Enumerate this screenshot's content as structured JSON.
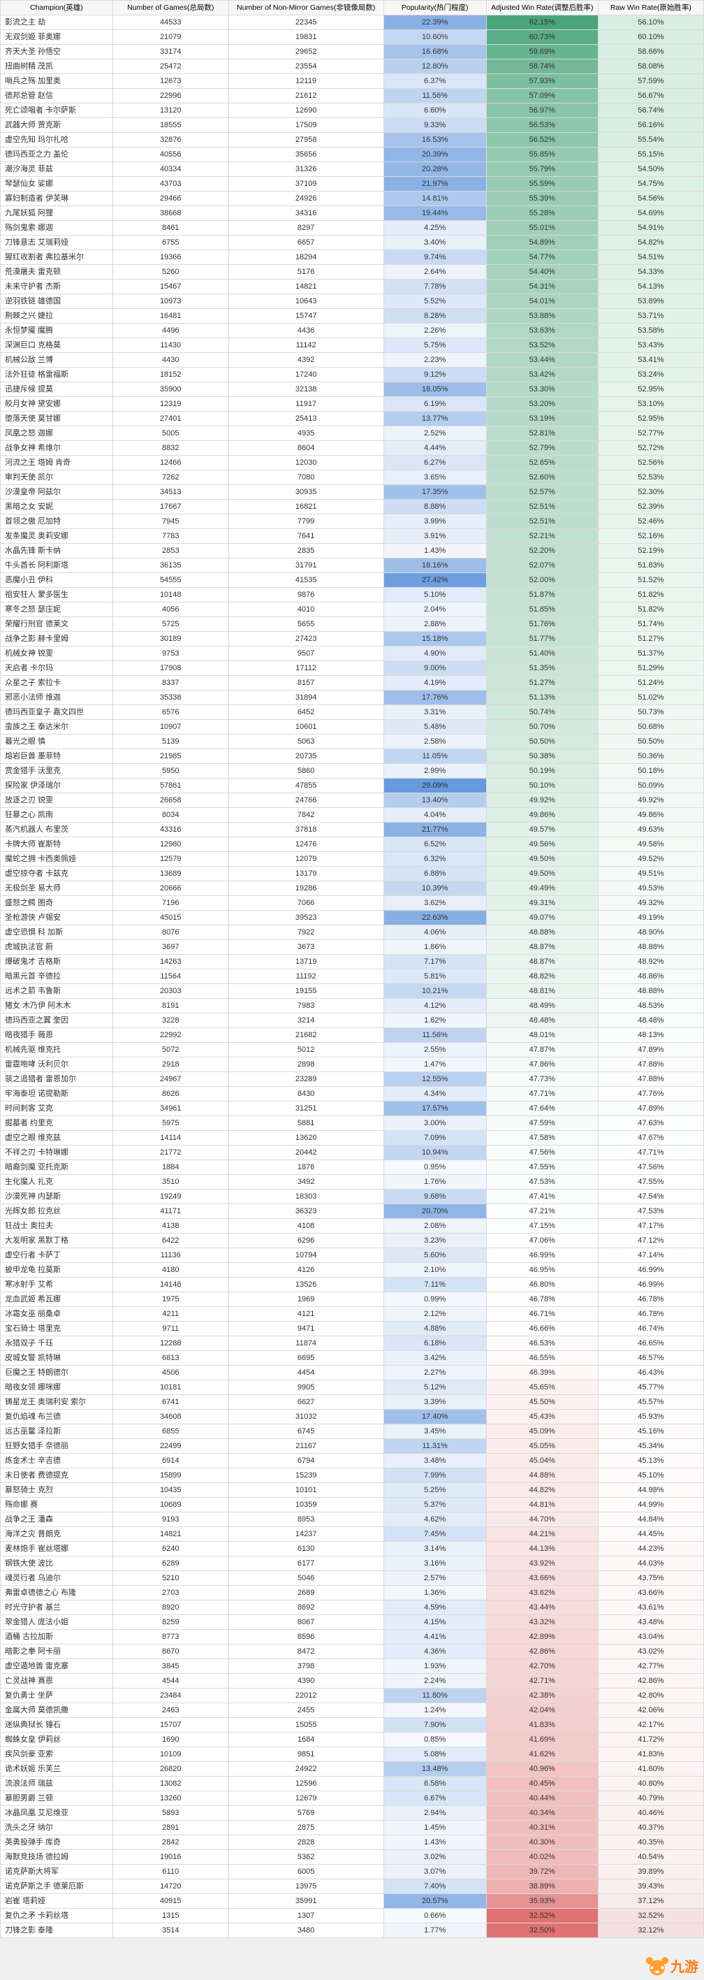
{
  "headers": [
    "Champion(英雄)",
    "Number of Games(总局数)",
    "Number of Non-Mirror Games(非镜像局数)",
    "Popularity(热门程度)",
    "Adjusted Win Rate(调整后胜率)",
    "Raw Win Rate(原始胜率)"
  ],
  "pop_scale": {
    "max_hex": "#6699dd",
    "min_hex": "#f6f9fd",
    "max_val": 29.09,
    "min_val": 0.66
  },
  "adj_scale": {
    "top_hex": "#4aa57a",
    "mid_hex": "#ffffff",
    "bot_hex": "#e07272",
    "top_val": 62.15,
    "mid_val": 47.0,
    "bot_val": 32.5
  },
  "raw_scale": {
    "top_hex": "#d7ede1",
    "mid_hex": "#ffffff",
    "bot_hex": "#f5e0e0",
    "top_val": 56.1,
    "mid_val": 47.0,
    "bot_val": 32.12
  },
  "logo_text": "九游",
  "rows": [
    [
      "影流之主 劫",
      44533,
      22345,
      22.39,
      62.15,
      56.1
    ],
    [
      "无双剑姬 菲奥娜",
      21079,
      19831,
      10.6,
      60.73,
      60.1
    ],
    [
      "齐天大圣 孙悟空",
      33174,
      29652,
      16.68,
      59.69,
      58.66
    ],
    [
      "扭曲树精 茂凯",
      25472,
      23554,
      12.8,
      58.74,
      58.08
    ],
    [
      "哨兵之殇 加里奥",
      12673,
      12119,
      6.37,
      57.93,
      57.59
    ],
    [
      "德邦总管 赵信",
      22996,
      21612,
      11.56,
      57.09,
      56.67
    ],
    [
      "死亡颂唱者 卡尔萨斯",
      13120,
      12690,
      6.6,
      56.97,
      56.74
    ],
    [
      "武器大师 贾克斯",
      18555,
      17509,
      9.33,
      56.53,
      56.16
    ],
    [
      "虚空先知 玛尔扎哈",
      32876,
      27958,
      16.53,
      56.52,
      55.54
    ],
    [
      "德玛西亚之力 盖伦",
      40556,
      35656,
      20.39,
      55.85,
      55.15
    ],
    [
      "潮汐海灵 菲兹",
      40334,
      31326,
      20.28,
      55.79,
      54.5
    ],
    [
      "琴瑟仙女 娑娜",
      43703,
      37109,
      21.97,
      55.59,
      54.75
    ],
    [
      "寡妇制造者 伊芙琳",
      29466,
      24926,
      14.81,
      55.39,
      54.56
    ],
    [
      "九尾妖狐 阿狸",
      38668,
      34316,
      19.44,
      55.28,
      54.69
    ],
    [
      "殇剑鬼索 娜迦",
      8461,
      8297,
      4.25,
      55.01,
      54.91
    ],
    [
      "刀锋意志 艾瑞莉娅",
      6755,
      6657,
      3.4,
      54.89,
      54.82
    ],
    [
      "猩红收割者 弗拉基米尔",
      19366,
      18294,
      9.74,
      54.77,
      54.51
    ],
    [
      "荒漠屠夫 雷克顿",
      5260,
      5176,
      2.64,
      54.4,
      54.33
    ],
    [
      "未来守护者 杰斯",
      15467,
      14821,
      7.78,
      54.31,
      54.13
    ],
    [
      "逆羽铁链 雄德国",
      10973,
      10643,
      5.52,
      54.01,
      53.89
    ],
    [
      "荆棘之兴 婕拉",
      16481,
      15747,
      8.28,
      53.88,
      53.71
    ],
    [
      "永恒梦魇 魔腾",
      4496,
      4436,
      2.26,
      53.63,
      53.58
    ],
    [
      "深渊巨口 克格莫",
      11430,
      11142,
      5.75,
      53.52,
      53.43
    ],
    [
      "机械公敌 兰博",
      4430,
      4392,
      2.23,
      53.44,
      53.41
    ],
    [
      "法外狂徒 格雷福斯",
      18152,
      17240,
      9.12,
      53.42,
      53.24
    ],
    [
      "迅捷斥候 提莫",
      35900,
      32138,
      18.05,
      53.3,
      52.95
    ],
    [
      "皎月女神 黛安娜",
      12319,
      11917,
      6.19,
      53.2,
      53.1
    ],
    [
      "堕落天使 莫甘娜",
      27401,
      25413,
      13.77,
      53.19,
      52.95
    ],
    [
      "凤凰之怒 迦娜",
      5005,
      4935,
      2.52,
      52.81,
      52.77
    ],
    [
      "战争女神 希维尔",
      8832,
      8604,
      4.44,
      52.79,
      52.72
    ],
    [
      "河流之王 塔姆 肯奇",
      12466,
      12030,
      6.27,
      52.65,
      52.56
    ],
    [
      "审判天使 凯尔",
      7262,
      7080,
      3.65,
      52.6,
      52.53
    ],
    [
      "沙漠皇帝 阿兹尔",
      34513,
      30935,
      17.35,
      52.57,
      52.3
    ],
    [
      "黑暗之女 安妮",
      17667,
      16821,
      8.88,
      52.51,
      52.39
    ],
    [
      "首领之傲 厄加特",
      7945,
      7799,
      3.99,
      52.51,
      52.46
    ],
    [
      "发条魔灵 奥莉安娜",
      7783,
      7641,
      3.91,
      52.21,
      52.16
    ],
    [
      "水晶先锋 斯卡纳",
      2853,
      2835,
      1.43,
      52.2,
      52.19
    ],
    [
      "牛头酋长 阿利斯塔",
      36135,
      31791,
      18.16,
      52.07,
      51.83
    ],
    [
      "恶魔小丑 伊科",
      54555,
      41535,
      27.42,
      52.0,
      51.52
    ],
    [
      "祖安狂人 蒙多医生",
      10148,
      9876,
      5.1,
      51.87,
      51.82
    ],
    [
      "寒冬之怒 瑟庄妮",
      4056,
      4010,
      2.04,
      51.85,
      51.82
    ],
    [
      "荣耀行刑官 德莱文",
      5725,
      5655,
      2.88,
      51.76,
      51.74
    ],
    [
      "战争之影 赫卡里姆",
      30189,
      27423,
      15.18,
      51.77,
      51.27
    ],
    [
      "机械女神 锐雯",
      9753,
      9507,
      4.9,
      51.4,
      51.37
    ],
    [
      "天启者 卡尔玛",
      17908,
      17112,
      9.0,
      51.35,
      51.29
    ],
    [
      "众星之子 索拉卡",
      8337,
      8157,
      4.19,
      51.27,
      51.24
    ],
    [
      "邪恶小法师 维迦",
      35338,
      31894,
      17.76,
      51.13,
      51.02
    ],
    [
      "德玛西亚皇子 嘉文四世",
      6576,
      6452,
      3.31,
      50.74,
      50.73
    ],
    [
      "蛮族之王 泰达米尔",
      10907,
      10601,
      5.48,
      50.7,
      50.68
    ],
    [
      "暮光之眼 慎",
      5139,
      5063,
      2.58,
      50.5,
      50.5
    ],
    [
      "熔岩巨兽 墨菲特",
      21985,
      20735,
      11.05,
      50.38,
      50.36
    ],
    [
      "赏金猎手 沃里克",
      5950,
      5860,
      2.99,
      50.19,
      50.18
    ],
    [
      "探险家 伊泽瑞尔",
      57861,
      47855,
      29.09,
      50.1,
      50.09
    ],
    [
      "放逐之刃 锐雯",
      26658,
      24766,
      13.4,
      49.92,
      49.92
    ],
    [
      "狂暴之心 凯南",
      8034,
      7842,
      4.04,
      49.86,
      49.86
    ],
    [
      "蒸汽机器人 布里茨",
      43316,
      37818,
      21.77,
      49.57,
      49.63
    ],
    [
      "卡牌大师 崔斯特",
      12980,
      12476,
      6.52,
      49.56,
      49.58
    ],
    [
      "魔蛇之拥 卡西奥佩娅",
      12579,
      12079,
      6.32,
      49.5,
      49.52
    ],
    [
      "虚空掠夺者 卡兹克",
      13689,
      13179,
      6.88,
      49.5,
      49.51
    ],
    [
      "无极剑圣 易大师",
      20666,
      19286,
      10.39,
      49.49,
      49.53
    ],
    [
      "盛怒之鳄 图奇",
      7196,
      7066,
      3.62,
      49.31,
      49.32
    ],
    [
      "圣枪游侠 卢锡安",
      45015,
      39523,
      22.63,
      49.07,
      49.19
    ],
    [
      "虚空恐惧 科 加斯",
      8076,
      7922,
      4.06,
      48.88,
      48.9
    ],
    [
      "虎城执法官 蔚",
      3697,
      3673,
      1.86,
      48.87,
      48.88
    ],
    [
      "爆破鬼才 吉格斯",
      14263,
      13719,
      7.17,
      48.87,
      48.92
    ],
    [
      "暗黑元首 辛德拉",
      11564,
      11192,
      5.81,
      48.82,
      48.86
    ],
    [
      "远术之箭 韦鲁斯",
      20303,
      19155,
      10.21,
      48.81,
      48.88
    ],
    [
      "猪女 木乃伊 阿木木",
      8191,
      7983,
      4.12,
      48.49,
      48.53
    ],
    [
      "德玛西亚之翼 奎因",
      3228,
      3214,
      1.62,
      48.48,
      48.48
    ],
    [
      "暗夜猎手 薇恩",
      22992,
      21682,
      11.56,
      48.01,
      48.13
    ],
    [
      "机械先驱 维克托",
      5072,
      5012,
      2.55,
      47.87,
      47.89
    ],
    [
      "雷霆咆哮 沃利贝尔",
      2918,
      2898,
      1.47,
      47.86,
      47.88
    ],
    [
      "骇之追猎者 雷恩加尔",
      24967,
      23289,
      12.55,
      47.73,
      47.88
    ],
    [
      "牢海泰坦 诺提勒斯",
      8626,
      8430,
      4.34,
      47.71,
      47.76
    ],
    [
      "时间刺客 艾克",
      34961,
      31251,
      17.57,
      47.64,
      47.89
    ],
    [
      "掘墓者 约里克",
      5975,
      5881,
      3.0,
      47.59,
      47.63
    ],
    [
      "虚空之眼 维克兹",
      14114,
      13620,
      7.09,
      47.58,
      47.67
    ],
    [
      "不祥之刃 卡特琳娜",
      21772,
      20442,
      10.94,
      47.56,
      47.71
    ],
    [
      "暗裔剑魔 亚托克斯",
      1884,
      1876,
      0.95,
      47.55,
      47.56
    ],
    [
      "生化魔人 扎克",
      3510,
      3492,
      1.76,
      47.53,
      47.55
    ],
    [
      "沙漠死神 内瑟斯",
      19249,
      18303,
      9.68,
      47.41,
      47.54
    ],
    [
      "光辉女郎 拉克丝",
      41171,
      36323,
      20.7,
      47.21,
      47.53
    ],
    [
      "狂战士 奥拉夫",
      4138,
      4108,
      2.08,
      47.15,
      47.17
    ],
    [
      "大发明家 黑默丁格",
      6422,
      6296,
      3.23,
      47.06,
      47.12
    ],
    [
      "虚空行者 卡萨丁",
      11136,
      10794,
      5.6,
      46.99,
      47.14
    ],
    [
      "披甲龙龟 拉莫斯",
      4180,
      4126,
      2.1,
      46.95,
      46.99
    ],
    [
      "寒冰射手 艾希",
      14146,
      13526,
      7.11,
      46.8,
      46.99
    ],
    [
      "龙血武姬 希瓦娜",
      1975,
      1969,
      0.99,
      46.78,
      46.78
    ],
    [
      "冰霜女巫 丽桑卓",
      4211,
      4121,
      2.12,
      46.71,
      46.78
    ],
    [
      "宝石骑士 塔里克",
      9711,
      9471,
      4.88,
      46.66,
      46.74
    ],
    [
      "永猎双子 千珏",
      12288,
      11874,
      6.18,
      46.53,
      46.65
    ],
    [
      "皮城女警 凯特琳",
      6813,
      6695,
      3.42,
      46.55,
      46.57
    ],
    [
      "巨魔之王 特朗德尔",
      4506,
      4454,
      2.27,
      46.39,
      46.43
    ],
    [
      "暗夜女领 娜咪娜",
      10181,
      9905,
      5.12,
      45.65,
      45.77
    ],
    [
      "铸星龙王 奥瑞利安 索尔",
      6741,
      6627,
      3.39,
      45.5,
      45.57
    ],
    [
      "复仇焰魂 布兰德",
      34608,
      31032,
      17.4,
      45.43,
      45.93
    ],
    [
      "远古巫鳖 泽拉斯",
      6855,
      6745,
      3.45,
      45.09,
      45.16
    ],
    [
      "狂野女猎手 奈德丽",
      22499,
      21167,
      11.31,
      45.05,
      45.34
    ],
    [
      "炼金术士 辛吉德",
      6914,
      6794,
      3.48,
      45.04,
      45.13
    ],
    [
      "末日使者 费德提克",
      15899,
      15239,
      7.99,
      44.88,
      45.1
    ],
    [
      "暴怒骑士 克烈",
      10435,
      10101,
      5.25,
      44.82,
      44.98
    ],
    [
      "殇命娜 赛",
      10689,
      10359,
      5.37,
      44.81,
      44.99
    ],
    [
      "战争之王 潘森",
      9193,
      8953,
      4.62,
      44.7,
      44.84
    ],
    [
      "海洋之灾 普朗克",
      14821,
      14237,
      7.45,
      44.21,
      44.45
    ],
    [
      "麦林炮手 崔丝塔娜",
      6240,
      6130,
      3.14,
      44.13,
      44.23
    ],
    [
      "钢铁大使 波比",
      6289,
      6177,
      3.16,
      43.92,
      44.03
    ],
    [
      "魂灵行者 乌迪尔",
      5210,
      5046,
      2.57,
      43.66,
      43.75
    ],
    [
      "弗雷卓德德之心 布隆",
      2703,
      2689,
      1.36,
      43.62,
      43.66
    ],
    [
      "时光守护者 基兰",
      8920,
      8692,
      4.59,
      43.44,
      43.61
    ],
    [
      "翠金猎人 庞法小姐",
      8259,
      8067,
      4.15,
      43.32,
      43.48
    ],
    [
      "酒桶 古拉加斯",
      8773,
      8596,
      4.41,
      42.89,
      43.04
    ],
    [
      "暗影之拳 阿卡丽",
      8670,
      8472,
      4.36,
      42.86,
      43.02
    ],
    [
      "虚空遁地兽 雷克塞",
      3845,
      3798,
      1.93,
      42.7,
      42.77
    ],
    [
      "亡灵战神 赛恩",
      4544,
      4390,
      2.24,
      42.71,
      42.86
    ],
    [
      "复仇勇士 坐萨",
      23484,
      22012,
      11.8,
      42.38,
      42.8
    ],
    [
      "金属大师 莫德凯撒",
      2463,
      2455,
      1.24,
      42.04,
      42.06
    ],
    [
      "迷纵典狱长 锤石",
      15707,
      15055,
      7.9,
      41.83,
      42.17
    ],
    [
      "蜘蛛女皇 伊莉丝",
      1690,
      1684,
      0.85,
      41.69,
      41.72
    ],
    [
      "疾风剑豪 亚索",
      10109,
      9851,
      5.08,
      41.62,
      41.83
    ],
    [
      "诡术妖姬 乐芙兰",
      26820,
      24922,
      13.48,
      40.96,
      41.6
    ],
    [
      "流浪法师 瑞兹",
      13082,
      12596,
      6.58,
      40.45,
      40.8
    ],
    [
      "暴胆男爵 兰顿",
      13260,
      12679,
      6.67,
      40.44,
      40.79
    ],
    [
      "冰晶凤凰 艾尼维亚",
      5893,
      5769,
      2.94,
      40.34,
      40.46
    ],
    [
      "洗头之牙 纳尔",
      2891,
      2875,
      1.45,
      40.31,
      40.37
    ],
    [
      "英勇投弹手 库奇",
      2842,
      2828,
      1.43,
      40.3,
      40.35
    ],
    [
      "海默竞技场 德拉姆",
      19016,
      5362,
      3.02,
      40.02,
      40.54
    ],
    [
      "诺克萨斯大将军",
      6110,
      6005,
      3.07,
      39.72,
      39.89
    ],
    [
      "诺克萨斯之手 德莱厄斯",
      14720,
      13975,
      7.4,
      38.89,
      39.43
    ],
    [
      "岩崔 塔莉娅",
      40915,
      35991,
      20.57,
      35.93,
      37.12
    ],
    [
      "复仇之矛 卡莉丝塔",
      1315,
      1307,
      0.66,
      32.52,
      32.52
    ],
    [
      "刀锋之影 泰隆",
      3514,
      3480,
      1.77,
      32.5,
      32.12
    ]
  ]
}
